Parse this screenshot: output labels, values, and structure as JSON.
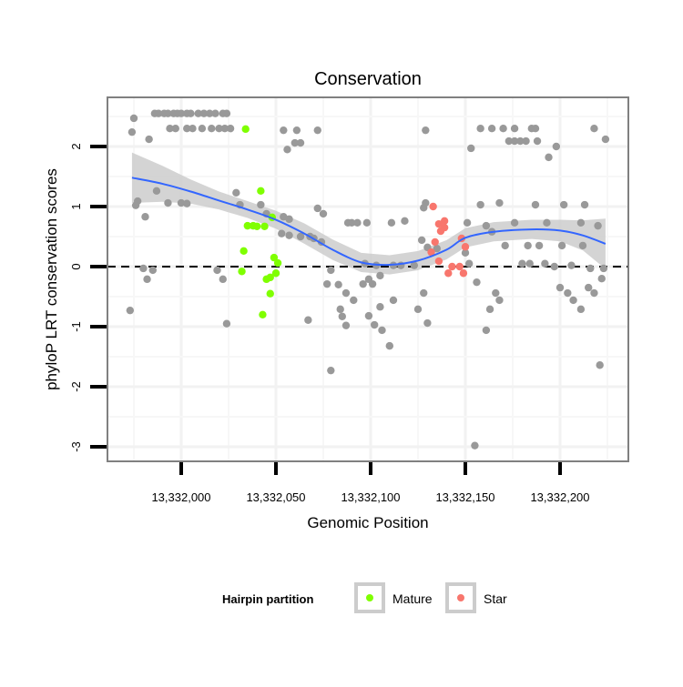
{
  "chart_data": {
    "type": "scatter",
    "title": "Conservation",
    "xlabel": "Genomic Position",
    "ylabel": "phyloP LRT conservation scores",
    "xlim": [
      13331970,
      13332227
    ],
    "ylim": [
      -3.25,
      2.8
    ],
    "x_ticks": [
      13332000,
      13332050,
      13332100,
      13332150,
      13332200
    ],
    "x_tick_labels": [
      "13,332,000",
      "13,332,050",
      "13,332,100",
      "13,332,150",
      "13,332,200"
    ],
    "y_ticks": [
      2,
      1,
      0,
      -1,
      -2,
      -3
    ],
    "y_tick_labels": [
      "2",
      "1",
      "0",
      "-1",
      "-2",
      "-3"
    ],
    "grid": true,
    "reference_line": {
      "y": 0,
      "style": "dashed"
    },
    "legend": {
      "title": "Hairpin partition",
      "position": "bottom",
      "entries": [
        "Mature",
        "Star"
      ]
    },
    "colors": {
      "other": "#999999",
      "Mature": "#7FFF00",
      "Star": "#F8766D",
      "smooth": "#3366FF",
      "band": "#CCCCCC"
    },
    "base": 13332000,
    "series": [
      {
        "name": "Other",
        "points": [
          [
            -14,
            2.55
          ],
          [
            -12,
            2.55
          ],
          [
            -9,
            2.55
          ],
          [
            -7,
            2.55
          ],
          [
            -4,
            2.55
          ],
          [
            -2,
            2.55
          ],
          [
            0,
            2.55
          ],
          [
            3,
            2.55
          ],
          [
            5,
            2.55
          ],
          [
            9,
            2.55
          ],
          [
            12,
            2.55
          ],
          [
            15,
            2.55
          ],
          [
            18,
            2.55
          ],
          [
            22,
            2.55
          ],
          [
            24,
            2.55
          ],
          [
            -6,
            2.3
          ],
          [
            -3,
            2.3
          ],
          [
            3,
            2.3
          ],
          [
            6,
            2.3
          ],
          [
            11,
            2.3
          ],
          [
            16,
            2.3
          ],
          [
            20,
            2.3
          ],
          [
            23,
            2.3
          ],
          [
            26,
            2.3
          ],
          [
            -25,
            2.47
          ],
          [
            -26,
            2.24
          ],
          [
            -17,
            2.12
          ],
          [
            54,
            2.27
          ],
          [
            61,
            2.27
          ],
          [
            60,
            2.06
          ],
          [
            63,
            2.06
          ],
          [
            56,
            1.95
          ],
          [
            72,
            2.27
          ],
          [
            129,
            2.27
          ],
          [
            158,
            2.3
          ],
          [
            164,
            2.3
          ],
          [
            170,
            2.3
          ],
          [
            176,
            2.3
          ],
          [
            185,
            2.3
          ],
          [
            187,
            2.3
          ],
          [
            173,
            2.09
          ],
          [
            176,
            2.09
          ],
          [
            179,
            2.09
          ],
          [
            182,
            2.09
          ],
          [
            188,
            2.09
          ],
          [
            198,
            2.0
          ],
          [
            194,
            1.82
          ],
          [
            218,
            2.3
          ],
          [
            224,
            2.12
          ],
          [
            153,
            1.97
          ],
          [
            -13,
            1.26
          ],
          [
            -23,
            1.09
          ],
          [
            -24,
            1.02
          ],
          [
            -7,
            1.06
          ],
          [
            0,
            1.06
          ],
          [
            3,
            1.05
          ],
          [
            -19,
            0.83
          ],
          [
            29,
            1.23
          ],
          [
            31,
            1.03
          ],
          [
            42,
            1.03
          ],
          [
            45,
            0.88
          ],
          [
            54,
            0.83
          ],
          [
            57,
            0.79
          ],
          [
            72,
            0.97
          ],
          [
            75,
            0.88
          ],
          [
            53,
            0.55
          ],
          [
            57,
            0.52
          ],
          [
            63,
            0.5
          ],
          [
            68,
            0.5
          ],
          [
            70,
            0.47
          ],
          [
            74,
            0.41
          ],
          [
            88,
            0.73
          ],
          [
            90,
            0.73
          ],
          [
            93,
            0.73
          ],
          [
            98,
            0.73
          ],
          [
            111,
            0.73
          ],
          [
            118,
            0.76
          ],
          [
            129,
            1.06
          ],
          [
            128,
            0.98
          ],
          [
            158,
            1.03
          ],
          [
            168,
            1.06
          ],
          [
            187,
            1.03
          ],
          [
            202,
            1.03
          ],
          [
            213,
            1.03
          ],
          [
            151,
            0.73
          ],
          [
            161,
            0.68
          ],
          [
            176,
            0.73
          ],
          [
            193,
            0.73
          ],
          [
            211,
            0.73
          ],
          [
            220,
            0.68
          ],
          [
            127,
            0.44
          ],
          [
            130,
            0.32
          ],
          [
            135,
            0.3
          ],
          [
            164,
            0.58
          ],
          [
            171,
            0.35
          ],
          [
            183,
            0.35
          ],
          [
            189,
            0.35
          ],
          [
            201,
            0.35
          ],
          [
            212,
            0.35
          ],
          [
            150,
            0.23
          ],
          [
            97,
            0.05
          ],
          [
            103,
            0.02
          ],
          [
            112,
            0.02
          ],
          [
            116,
            0.02
          ],
          [
            123,
            0.02
          ],
          [
            152,
            0.05
          ],
          [
            180,
            0.05
          ],
          [
            184,
            0.05
          ],
          [
            192,
            0.05
          ],
          [
            197,
            0
          ],
          [
            206,
            0.02
          ],
          [
            216,
            -0.03
          ],
          [
            223,
            -0.03
          ],
          [
            -27,
            -0.73
          ],
          [
            -20,
            -0.03
          ],
          [
            -15,
            -0.06
          ],
          [
            -18,
            -0.21
          ],
          [
            19,
            -0.06
          ],
          [
            22,
            -0.21
          ],
          [
            24,
            -0.95
          ],
          [
            67,
            -0.89
          ],
          [
            79,
            -1.73
          ],
          [
            79,
            -0.06
          ],
          [
            77,
            -0.29
          ],
          [
            83,
            -0.3
          ],
          [
            87,
            -0.44
          ],
          [
            91,
            -0.56
          ],
          [
            96,
            -0.29
          ],
          [
            99,
            -0.21
          ],
          [
            101,
            -0.29
          ],
          [
            105,
            -0.15
          ],
          [
            84,
            -0.71
          ],
          [
            85,
            -0.83
          ],
          [
            87,
            -0.98
          ],
          [
            99,
            -0.82
          ],
          [
            102,
            -0.97
          ],
          [
            105,
            -0.67
          ],
          [
            110,
            -1.32
          ],
          [
            106,
            -1.06
          ],
          [
            112,
            -0.56
          ],
          [
            128,
            -0.44
          ],
          [
            125,
            -0.71
          ],
          [
            130,
            -0.94
          ],
          [
            156,
            -0.26
          ],
          [
            166,
            -0.44
          ],
          [
            168,
            -0.56
          ],
          [
            163,
            -0.71
          ],
          [
            161,
            -1.06
          ],
          [
            155,
            -2.98
          ],
          [
            200,
            -0.35
          ],
          [
            204,
            -0.44
          ],
          [
            207,
            -0.56
          ],
          [
            211,
            -0.71
          ],
          [
            215,
            -0.35
          ],
          [
            218,
            -0.44
          ],
          [
            222,
            -0.2
          ],
          [
            221,
            -1.64
          ]
        ]
      },
      {
        "name": "Mature",
        "points": [
          [
            34,
            2.29
          ],
          [
            42,
            1.26
          ],
          [
            48,
            0.82
          ],
          [
            35,
            0.68
          ],
          [
            38,
            0.68
          ],
          [
            40,
            0.67
          ],
          [
            44,
            0.67
          ],
          [
            33,
            0.26
          ],
          [
            49,
            0.15
          ],
          [
            51,
            0.06
          ],
          [
            32,
            -0.08
          ],
          [
            45,
            -0.21
          ],
          [
            47,
            -0.18
          ],
          [
            47,
            -0.45
          ],
          [
            43,
            -0.8
          ],
          [
            50,
            -0.11
          ]
        ]
      },
      {
        "name": "Star",
        "points": [
          [
            133,
            1.0
          ],
          [
            136,
            0.71
          ],
          [
            139,
            0.76
          ],
          [
            137,
            0.59
          ],
          [
            139,
            0.65
          ],
          [
            134,
            0.41
          ],
          [
            132,
            0.24
          ],
          [
            136,
            0.09
          ],
          [
            148,
            0.47
          ],
          [
            150,
            0.33
          ],
          [
            141,
            -0.11
          ],
          [
            143,
            0
          ],
          [
            147,
            0
          ],
          [
            149,
            -0.11
          ]
        ]
      }
    ],
    "smooth": {
      "x": [
        -26,
        -10,
        5,
        20,
        35,
        50,
        65,
        80,
        95,
        110,
        125,
        140,
        150,
        165,
        185,
        200,
        212,
        224
      ],
      "y": [
        1.48,
        1.38,
        1.25,
        1.1,
        0.95,
        0.78,
        0.55,
        0.28,
        0.07,
        0.03,
        0.1,
        0.28,
        0.48,
        0.58,
        0.62,
        0.6,
        0.52,
        0.38
      ],
      "se": [
        0.42,
        0.3,
        0.2,
        0.15,
        0.14,
        0.15,
        0.17,
        0.17,
        0.16,
        0.16,
        0.16,
        0.16,
        0.16,
        0.16,
        0.16,
        0.18,
        0.25,
        0.42
      ]
    }
  }
}
